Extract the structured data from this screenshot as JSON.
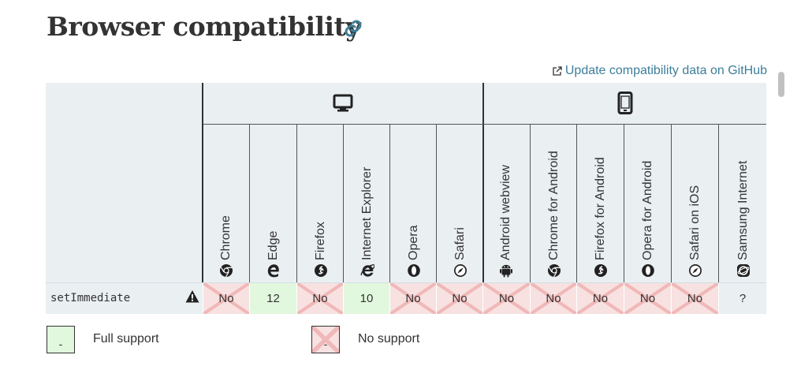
{
  "page": {
    "title": "Browser compatibility",
    "github_link": "Update compatibility data on GitHub"
  },
  "platforms": [
    {
      "name": "desktop",
      "icon": "desktop-icon"
    },
    {
      "name": "mobile",
      "icon": "mobile-icon"
    }
  ],
  "browsers": [
    {
      "name": "Chrome",
      "icon": "chrome-icon"
    },
    {
      "name": "Edge",
      "icon": "edge-icon"
    },
    {
      "name": "Firefox",
      "icon": "firefox-icon"
    },
    {
      "name": "Internet Explorer",
      "icon": "ie-icon"
    },
    {
      "name": "Opera",
      "icon": "opera-icon"
    },
    {
      "name": "Safari",
      "icon": "safari-icon"
    },
    {
      "name": "Android webview",
      "icon": "android-icon"
    },
    {
      "name": "Chrome for Android",
      "icon": "chrome-icon"
    },
    {
      "name": "Firefox for Android",
      "icon": "firefox-icon"
    },
    {
      "name": "Opera for Android",
      "icon": "opera-icon"
    },
    {
      "name": "Safari on iOS",
      "icon": "safari-icon"
    },
    {
      "name": "Samsung Internet",
      "icon": "samsung-icon"
    }
  ],
  "feature": {
    "name": "setImmediate",
    "warning_icon": "warning-icon",
    "support": [
      {
        "value": "No",
        "status": "no"
      },
      {
        "value": "12",
        "status": "yes"
      },
      {
        "value": "No",
        "status": "no"
      },
      {
        "value": "10",
        "status": "yes"
      },
      {
        "value": "No",
        "status": "no"
      },
      {
        "value": "No",
        "status": "no"
      },
      {
        "value": "No",
        "status": "no"
      },
      {
        "value": "No",
        "status": "no"
      },
      {
        "value": "No",
        "status": "no"
      },
      {
        "value": "No",
        "status": "no"
      },
      {
        "value": "No",
        "status": "no"
      },
      {
        "value": "?",
        "status": "unknown"
      }
    ]
  },
  "legend": {
    "full": {
      "box": "-",
      "label": "Full support"
    },
    "none": {
      "box": "-",
      "label": "No support"
    }
  },
  "colors": {
    "accent": "#3d7e9a",
    "full_support": "#e2f8de",
    "no_support": "#f8e1e1",
    "header_bg": "#eaeff2"
  }
}
